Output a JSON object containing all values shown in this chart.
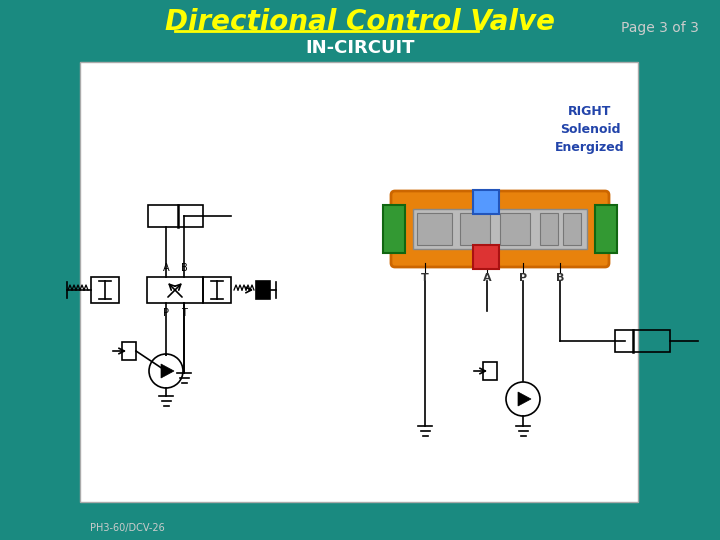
{
  "bg_color": "#1a8a80",
  "title": "Directional Control Valve",
  "title_color": "#ffff00",
  "subtitle": "IN-CIRCUIT",
  "subtitle_color": "#ffffff",
  "page_text": "Page 3 of 3",
  "page_color": "#cccccc",
  "slide_bg": "#ffffff",
  "label_right": "RIGHT\nSolenoid\nEnergized",
  "label_right_color": "#2244aa",
  "footer": "PH3-60/DCV-26",
  "footer_color": "#cccccc"
}
